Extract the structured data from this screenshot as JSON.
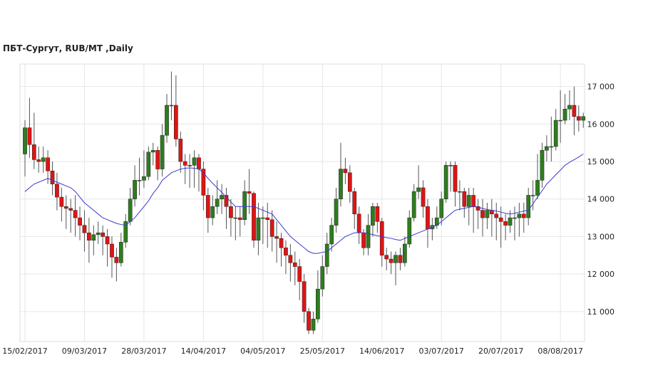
{
  "chart_data": {
    "type": "candlestick",
    "title": "ПБТ-Сургут,  RUB/MT ,Daily",
    "categories": [
      "15/02/2017",
      null,
      null,
      null,
      null,
      null,
      null,
      null,
      null,
      null,
      null,
      null,
      null,
      "09/03/2017",
      null,
      null,
      null,
      null,
      null,
      null,
      null,
      null,
      null,
      null,
      null,
      null,
      "28/03/2017",
      null,
      null,
      null,
      null,
      null,
      null,
      null,
      null,
      null,
      null,
      null,
      null,
      "14/04/2017",
      null,
      null,
      null,
      null,
      null,
      null,
      null,
      null,
      null,
      null,
      null,
      null,
      "04/05/2017",
      null,
      null,
      null,
      null,
      null,
      null,
      null,
      null,
      null,
      null,
      null,
      null,
      "25/05/2017",
      null,
      null,
      null,
      null,
      null,
      null,
      null,
      null,
      null,
      null,
      null,
      null,
      "14/06/2017",
      null,
      null,
      null,
      null,
      null,
      null,
      null,
      null,
      null,
      null,
      null,
      null,
      "03/07/2017",
      null,
      null,
      null,
      null,
      null,
      null,
      null,
      null,
      null,
      null,
      null,
      null,
      "20/07/2017",
      null,
      null,
      null,
      null,
      null,
      null,
      null,
      null,
      null,
      null,
      null,
      null,
      "08/08/2017",
      null,
      null,
      null,
      null,
      null
    ],
    "open": [
      15200,
      15900,
      15450,
      15050,
      15000,
      15100,
      14750,
      14400,
      14050,
      13800,
      13750,
      13700,
      13500,
      13300,
      13100,
      12900,
      13050,
      13100,
      13000,
      12800,
      12450,
      12300,
      12850,
      13400,
      14000,
      14500,
      14500,
      14600,
      15250,
      15300,
      14800,
      15700,
      16500,
      16500,
      15600,
      15000,
      14900,
      14900,
      15100,
      14800,
      14100,
      13500,
      13800,
      14000,
      14100,
      13800,
      13500,
      13500,
      13450,
      14200,
      14150,
      12900,
      13500,
      13500,
      13450,
      13000,
      12950,
      12700,
      12500,
      12300,
      12200,
      11800,
      11000,
      10500,
      10800,
      11600,
      12200,
      12800,
      13300,
      14000,
      14800,
      14700,
      14200,
      13600,
      13100,
      12700,
      13300,
      13800,
      13400,
      12500,
      12400,
      12300,
      12500,
      12300,
      12800,
      13500,
      14200,
      14300,
      13800,
      13200,
      13300,
      13500,
      14000,
      14900,
      14900,
      14200,
      14200,
      13800,
      14100,
      13800,
      13700,
      13500,
      13700,
      13600,
      13500,
      13400,
      13300,
      13500,
      13500,
      13600,
      13500,
      14100,
      14100,
      14500,
      15300,
      15400,
      15400,
      16100,
      16100,
      16400,
      16500,
      16200,
      16100
    ],
    "high": [
      16100,
      16700,
      16300,
      15400,
      15400,
      15300,
      15000,
      14700,
      14300,
      14100,
      14000,
      14100,
      13800,
      13700,
      13500,
      13300,
      13400,
      13300,
      13200,
      13000,
      12700,
      13100,
      13600,
      14300,
      14900,
      15100,
      15300,
      15400,
      15500,
      15400,
      16000,
      16800,
      17400,
      17300,
      15800,
      15200,
      15200,
      15300,
      15200,
      15000,
      14300,
      14100,
      14500,
      14400,
      14300,
      14000,
      13800,
      13800,
      14500,
      14800,
      14200,
      13900,
      13800,
      13900,
      13700,
      13400,
      13100,
      12900,
      12800,
      12600,
      12400,
      12000,
      11100,
      11000,
      12100,
      12500,
      13100,
      13500,
      14300,
      15500,
      15100,
      14900,
      14300,
      13800,
      13200,
      13600,
      13900,
      13900,
      13500,
      12700,
      12600,
      12600,
      12700,
      13000,
      13700,
      14400,
      14900,
      14500,
      14000,
      13500,
      13800,
      14200,
      15000,
      15000,
      15000,
      14500,
      14300,
      14300,
      14300,
      14000,
      14000,
      13900,
      14000,
      13900,
      13800,
      13600,
      13700,
      13800,
      13900,
      13900,
      14300,
      14500,
      15200,
      15500,
      15700,
      16200,
      16400,
      16900,
      16800,
      16900,
      17000,
      16500,
      16300
    ],
    "low": [
      14600,
      15100,
      14800,
      14700,
      14700,
      14400,
      14100,
      13700,
      13400,
      13200,
      13100,
      13000,
      12900,
      12600,
      12300,
      12500,
      12800,
      12500,
      12200,
      11900,
      11800,
      12200,
      12700,
      13300,
      13800,
      14100,
      14300,
      14500,
      14900,
      14500,
      14600,
      15500,
      16100,
      15400,
      14700,
      14400,
      14300,
      14300,
      14200,
      13700,
      13100,
      13300,
      13600,
      13600,
      13200,
      13000,
      12900,
      13000,
      13300,
      13600,
      12700,
      12500,
      12800,
      12700,
      12600,
      12300,
      12200,
      12000,
      11800,
      11700,
      11300,
      10700,
      10400,
      10400,
      10700,
      11400,
      12000,
      12600,
      13100,
      13800,
      14400,
      13900,
      13200,
      12800,
      12500,
      12500,
      13000,
      13100,
      12200,
      12100,
      12000,
      11700,
      12100,
      12200,
      12700,
      13400,
      14000,
      13500,
      12700,
      12900,
      13200,
      13300,
      13900,
      14200,
      13800,
      13700,
      13500,
      13300,
      13100,
      13200,
      13000,
      13200,
      13000,
      12900,
      12700,
      12900,
      13100,
      12900,
      13000,
      13100,
      13300,
      13700,
      14000,
      14300,
      15000,
      15000,
      15300,
      15500,
      16000,
      16100,
      15700,
      15800,
      15900
    ],
    "close": [
      15900,
      15450,
      15050,
      15000,
      15100,
      14750,
      14400,
      14050,
      13800,
      13750,
      13700,
      13500,
      13300,
      13100,
      12900,
      13050,
      13100,
      13000,
      12800,
      12450,
      12300,
      12850,
      13400,
      14000,
      14500,
      14500,
      14600,
      15250,
      15300,
      14800,
      15700,
      16500,
      16500,
      15600,
      15000,
      14900,
      14900,
      15100,
      14800,
      14100,
      13500,
      13800,
      14000,
      14100,
      13800,
      13500,
      13500,
      13450,
      14200,
      14150,
      12900,
      13500,
      13500,
      13450,
      13000,
      12950,
      12700,
      12500,
      12300,
      12200,
      11800,
      11000,
      10500,
      10800,
      11600,
      12200,
      12800,
      13300,
      14000,
      14800,
      14700,
      14200,
      13600,
      13100,
      12700,
      13300,
      13800,
      13400,
      12500,
      12400,
      12300,
      12500,
      12300,
      12800,
      13500,
      14200,
      14300,
      13800,
      13200,
      13300,
      13500,
      14000,
      14900,
      14900,
      14200,
      14200,
      13800,
      14100,
      13800,
      13700,
      13500,
      13700,
      13600,
      13500,
      13400,
      13300,
      13500,
      13500,
      13600,
      13500,
      14100,
      14100,
      14500,
      15300,
      15400,
      15400,
      16100,
      16100,
      16400,
      16500,
      16200,
      16100,
      16200
    ],
    "ma": [
      14200,
      14300,
      14400,
      14450,
      14500,
      14550,
      14500,
      14450,
      14400,
      14350,
      14300,
      14200,
      14050,
      13900,
      13800,
      13700,
      13600,
      13500,
      13450,
      13400,
      13350,
      13320,
      13300,
      13400,
      13500,
      13650,
      13800,
      13950,
      14150,
      14300,
      14500,
      14600,
      14700,
      14750,
      14800,
      14820,
      14830,
      14820,
      14800,
      14700,
      14550,
      14420,
      14300,
      14180,
      14050,
      13920,
      13800,
      13800,
      13800,
      13800,
      13800,
      13750,
      13700,
      13650,
      13600,
      13450,
      13300,
      13150,
      13000,
      12900,
      12800,
      12700,
      12600,
      12550,
      12550,
      12580,
      12600,
      12700,
      12800,
      12900,
      13000,
      13050,
      13100,
      13100,
      13100,
      13080,
      13050,
      13020,
      13000,
      12970,
      12950,
      12920,
      12900,
      12950,
      13000,
      13050,
      13100,
      13150,
      13200,
      13250,
      13300,
      13400,
      13500,
      13600,
      13700,
      13730,
      13750,
      13780,
      13800,
      13780,
      13750,
      13720,
      13700,
      13680,
      13650,
      13620,
      13600,
      13620,
      13650,
      13680,
      13700,
      13870,
      14050,
      14220,
      14400,
      14520,
      14650,
      14770,
      14900,
      14980,
      15050,
      15120,
      15200
    ],
    "up_color": "#2e7d1e",
    "down_color": "#e01414",
    "ma_color": "#3a3ad0",
    "ylim": [
      10200,
      17600
    ],
    "yticks": [
      {
        "value": 11000,
        "label": "11 000"
      },
      {
        "value": 12000,
        "label": "12 000"
      },
      {
        "value": 13000,
        "label": "13 000"
      },
      {
        "value": 14000,
        "label": "14 000"
      },
      {
        "value": 15000,
        "label": "15 000"
      },
      {
        "value": 16000,
        "label": "16 000"
      },
      {
        "value": 17000,
        "label": "17 000"
      }
    ],
    "grid": true
  }
}
